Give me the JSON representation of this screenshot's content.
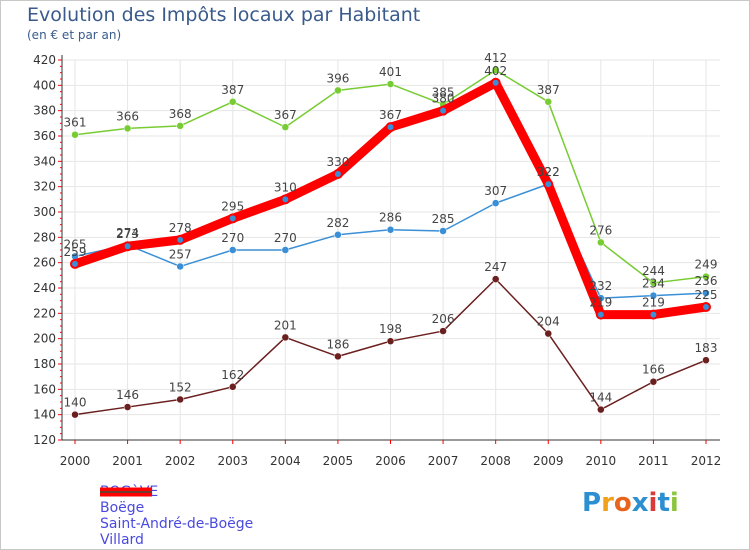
{
  "title": "Evolution des Impôts locaux par Habitant",
  "subtitle": "(en € et par an)",
  "logo": {
    "letters": [
      "P",
      "r",
      "o",
      "x",
      "i",
      "t",
      "i"
    ],
    "colors": [
      "#2b8fd1",
      "#f2a21a",
      "#e8641d",
      "#2b8fd1",
      "#d93b3b",
      "#2b8fd1",
      "#8cc63f"
    ]
  },
  "chart_data": {
    "type": "line",
    "x": [
      "2000",
      "2001",
      "2002",
      "2003",
      "2004",
      "2005",
      "2006",
      "2007",
      "2008",
      "2009",
      "2010",
      "2011",
      "2012"
    ],
    "ylim": [
      120,
      420
    ],
    "yticks": [
      120,
      140,
      160,
      180,
      200,
      220,
      240,
      260,
      280,
      300,
      320,
      340,
      360,
      380,
      400,
      420
    ],
    "grid": true,
    "legend_position": "bottom-left",
    "series": [
      {
        "name": "BOGèVE",
        "color": "#ff0000",
        "values": [
          259,
          273,
          278,
          295,
          310,
          330,
          367,
          380,
          402,
          322,
          219,
          219,
          225
        ],
        "labels": [
          "259",
          "273",
          "278",
          "295",
          "310",
          "330",
          "367",
          "380",
          "402",
          "322",
          "219",
          "219",
          "225"
        ]
      },
      {
        "name": "Boëge",
        "color": "#3a8fd6",
        "values": [
          265,
          274,
          257,
          270,
          270,
          282,
          286,
          285,
          307,
          322,
          232,
          234,
          236
        ],
        "labels": [
          "265",
          "274",
          "257",
          "270",
          "270",
          "282",
          "286",
          "285",
          "307",
          "322",
          "232",
          "234",
          "236"
        ]
      },
      {
        "name": "Saint-André-de-Boëge",
        "color": "#77cc33",
        "values": [
          361,
          366,
          368,
          387,
          367,
          396,
          401,
          385,
          412,
          387,
          276,
          244,
          249
        ],
        "labels": [
          "361",
          "366",
          "368",
          "387",
          "367",
          "396",
          "401",
          "385",
          "412",
          "387",
          "276",
          "244",
          "249"
        ]
      },
      {
        "name": "Villard",
        "color": "#6b1f1f",
        "values": [
          140,
          146,
          152,
          162,
          201,
          186,
          198,
          206,
          247,
          204,
          144,
          166,
          183
        ],
        "labels": [
          "140",
          "146",
          "152",
          "162",
          "201",
          "186",
          "198",
          "206",
          "247",
          "204",
          "144",
          "166",
          "183"
        ]
      }
    ]
  }
}
